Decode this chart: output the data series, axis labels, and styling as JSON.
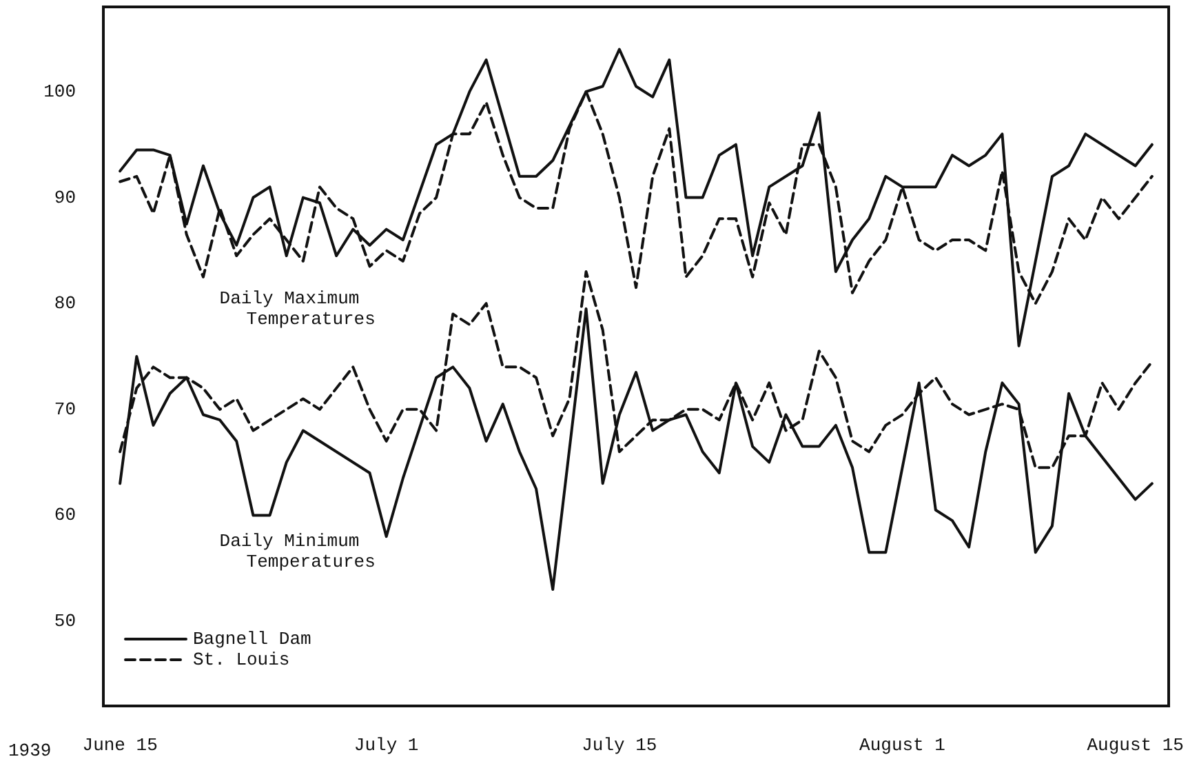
{
  "chart_data": {
    "type": "line",
    "xlim": [
      "1939-06-14",
      "1939-08-17"
    ],
    "ylim": [
      42,
      108
    ],
    "xticks": [
      {
        "value": "1939-06-15",
        "label": "June 15"
      },
      {
        "value": "1939-07-01",
        "label": "July 1"
      },
      {
        "value": "1939-07-15",
        "label": "July 15"
      },
      {
        "value": "1939-08-01",
        "label": "August 1"
      },
      {
        "value": "1939-08-15",
        "label": "August 15"
      }
    ],
    "yticks": [
      50,
      60,
      70,
      80,
      90,
      100
    ],
    "grid": false,
    "legend": "bottom left",
    "marker": "none",
    "annotations": [
      "1939",
      "Daily Maximum\n    Temperatures",
      "Daily Minimum\n    Temperatures"
    ],
    "series": [
      {
        "name": "Bagnell Dam",
        "color": "#111111",
        "line_style": "solid",
        "x": [
          "1939-06-15",
          "1939-06-16",
          "1939-06-17",
          "1939-06-18",
          "1939-06-19",
          "1939-06-20",
          "1939-06-21",
          "1939-06-22",
          "1939-06-23",
          "1939-06-24",
          "1939-06-25",
          "1939-06-26",
          "1939-06-27",
          "1939-06-28",
          "1939-06-29",
          "1939-06-30",
          "1939-07-01",
          "1939-07-02",
          "1939-07-04",
          "1939-07-05",
          "1939-07-06",
          "1939-07-07",
          "1939-07-09",
          "1939-07-10",
          "1939-07-11",
          "1939-07-13",
          "1939-07-14",
          "1939-07-15",
          "1939-07-16",
          "1939-07-17",
          "1939-07-18",
          "1939-07-19",
          "1939-07-20",
          "1939-07-21",
          "1939-07-22",
          "1939-07-23",
          "1939-07-24",
          "1939-07-26",
          "1939-07-27",
          "1939-07-28",
          "1939-07-29",
          "1939-07-30",
          "1939-07-31",
          "1939-08-01",
          "1939-08-03",
          "1939-08-04",
          "1939-08-05",
          "1939-08-06",
          "1939-08-07",
          "1939-08-08",
          "1939-08-10",
          "1939-08-11",
          "1939-08-12",
          "1939-08-15",
          "1939-08-16"
        ],
        "values": [
          92.5,
          94.5,
          94.5,
          94,
          87.5,
          93,
          88.5,
          85.5,
          90,
          91,
          84.5,
          90,
          89.5,
          84.5,
          87,
          85.5,
          87,
          86,
          95,
          96,
          100,
          103,
          92,
          92,
          93.5,
          100,
          100.5,
          104,
          100.5,
          99.5,
          103,
          90,
          90,
          94,
          95,
          84.5,
          91,
          93,
          98,
          83,
          86,
          88,
          92,
          91,
          91,
          94,
          93,
          94,
          96,
          76,
          92,
          93,
          96,
          93,
          95
        ]
      },
      {
        "name": "St. Louis",
        "color": "#111111",
        "line_style": "dashed",
        "x": [
          "1939-06-15",
          "1939-06-16",
          "1939-06-17",
          "1939-06-18",
          "1939-06-19",
          "1939-06-20",
          "1939-06-21",
          "1939-06-22",
          "1939-06-23",
          "1939-06-24",
          "1939-06-25",
          "1939-06-26",
          "1939-06-27",
          "1939-06-28",
          "1939-06-29",
          "1939-06-30",
          "1939-07-01",
          "1939-07-02",
          "1939-07-03",
          "1939-07-04",
          "1939-07-05",
          "1939-07-06",
          "1939-07-07",
          "1939-07-08",
          "1939-07-09",
          "1939-07-10",
          "1939-07-11",
          "1939-07-12",
          "1939-07-13",
          "1939-07-14",
          "1939-07-15",
          "1939-07-16",
          "1939-07-17",
          "1939-07-18",
          "1939-07-19",
          "1939-07-20",
          "1939-07-21",
          "1939-07-22",
          "1939-07-23",
          "1939-07-24",
          "1939-07-25",
          "1939-07-26",
          "1939-07-27",
          "1939-07-28",
          "1939-07-29",
          "1939-07-30",
          "1939-07-31",
          "1939-08-01",
          "1939-08-02",
          "1939-08-03",
          "1939-08-04",
          "1939-08-05",
          "1939-08-06",
          "1939-08-07",
          "1939-08-08",
          "1939-08-09",
          "1939-08-10",
          "1939-08-11",
          "1939-08-12",
          "1939-08-13",
          "1939-08-14",
          "1939-08-16"
        ],
        "values": [
          91.5,
          92,
          88.5,
          94,
          86.5,
          82.5,
          89,
          84.5,
          86.5,
          88,
          86,
          84,
          91,
          89,
          88,
          83.5,
          85,
          84,
          88.5,
          90,
          96,
          96,
          99,
          94,
          90,
          89,
          89,
          96.5,
          100,
          96,
          90,
          81.5,
          92,
          96.5,
          82.5,
          84.5,
          88,
          88,
          82.5,
          89.5,
          86.5,
          95,
          95,
          91,
          81,
          84,
          86,
          91,
          86,
          85,
          86,
          86,
          85,
          92.5,
          83,
          80,
          83,
          88,
          86,
          90,
          88,
          92
        ]
      },
      {
        "color": "#111111",
        "line_style": "solid",
        "x": [
          "1939-06-15",
          "1939-06-16",
          "1939-06-17",
          "1939-06-18",
          "1939-06-19",
          "1939-06-20",
          "1939-06-21",
          "1939-06-22",
          "1939-06-23",
          "1939-06-24",
          "1939-06-25",
          "1939-06-26",
          "1939-06-30",
          "1939-07-01",
          "1939-07-02",
          "1939-07-04",
          "1939-07-05",
          "1939-07-06",
          "1939-07-07",
          "1939-07-08",
          "1939-07-09",
          "1939-07-10",
          "1939-07-11",
          "1939-07-13",
          "1939-07-14",
          "1939-07-15",
          "1939-07-16",
          "1939-07-17",
          "1939-07-18",
          "1939-07-19",
          "1939-07-20",
          "1939-07-21",
          "1939-07-22",
          "1939-07-23",
          "1939-07-24",
          "1939-07-25",
          "1939-07-26",
          "1939-07-27",
          "1939-07-28",
          "1939-07-29",
          "1939-07-30",
          "1939-07-31",
          "1939-08-01",
          "1939-08-02",
          "1939-08-03",
          "1939-08-04",
          "1939-08-05",
          "1939-08-06",
          "1939-08-07",
          "1939-08-08",
          "1939-08-09",
          "1939-08-10",
          "1939-08-11",
          "1939-08-12",
          "1939-08-13",
          "1939-08-15",
          "1939-08-16"
        ],
        "values": [
          63,
          75,
          68.5,
          71.5,
          73,
          69.5,
          69,
          67,
          60,
          60,
          65,
          68,
          64,
          58,
          63.5,
          73,
          74,
          72,
          67,
          70.5,
          66,
          62.5,
          53,
          79.5,
          63,
          69.5,
          73.5,
          68,
          69,
          69.5,
          66,
          64,
          72.5,
          66.5,
          65,
          69.5,
          66.5,
          66.5,
          68.5,
          64.5,
          56.5,
          56.5,
          64.5,
          72.5,
          60.5,
          59.5,
          57,
          66,
          72.5,
          70.5,
          56.5,
          59,
          71.5,
          67.5,
          65.5,
          61.5,
          63
        ]
      },
      {
        "color": "#111111",
        "line_style": "dashed",
        "x": [
          "1939-06-15",
          "1939-06-16",
          "1939-06-17",
          "1939-06-18",
          "1939-06-19",
          "1939-06-20",
          "1939-06-21",
          "1939-06-22",
          "1939-06-23",
          "1939-06-24",
          "1939-06-25",
          "1939-06-26",
          "1939-06-27",
          "1939-06-29",
          "1939-06-30",
          "1939-07-01",
          "1939-07-02",
          "1939-07-03",
          "1939-07-04",
          "1939-07-05",
          "1939-07-06",
          "1939-07-07",
          "1939-07-08",
          "1939-07-09",
          "1939-07-10",
          "1939-07-11",
          "1939-07-12",
          "1939-07-13",
          "1939-07-14",
          "1939-07-15",
          "1939-07-16",
          "1939-07-17",
          "1939-07-18",
          "1939-07-19",
          "1939-07-20",
          "1939-07-21",
          "1939-07-22",
          "1939-07-23",
          "1939-07-24",
          "1939-07-25",
          "1939-07-26",
          "1939-07-27",
          "1939-07-28",
          "1939-07-29",
          "1939-07-30",
          "1939-07-31",
          "1939-08-01",
          "1939-08-02",
          "1939-08-03",
          "1939-08-04",
          "1939-08-05",
          "1939-08-06",
          "1939-08-07",
          "1939-08-08",
          "1939-08-09",
          "1939-08-10",
          "1939-08-11",
          "1939-08-12",
          "1939-08-13",
          "1939-08-14",
          "1939-08-15",
          "1939-08-16"
        ],
        "values": [
          66,
          72,
          74,
          73,
          73,
          72,
          70,
          71,
          68,
          69,
          70,
          71,
          70,
          74,
          70,
          67,
          70,
          70,
          68,
          79,
          78,
          80,
          74,
          74,
          73,
          67.5,
          71,
          83,
          77.5,
          66,
          67.5,
          69,
          69,
          70,
          70,
          69,
          72.5,
          69,
          72.5,
          68,
          69,
          75.5,
          73,
          67,
          66,
          68.5,
          69.5,
          71.5,
          73,
          70.5,
          69.5,
          70,
          70.5,
          70,
          64.5,
          64.5,
          67.5,
          67.5,
          72.5,
          70,
          72.5,
          74.5
        ]
      }
    ]
  }
}
